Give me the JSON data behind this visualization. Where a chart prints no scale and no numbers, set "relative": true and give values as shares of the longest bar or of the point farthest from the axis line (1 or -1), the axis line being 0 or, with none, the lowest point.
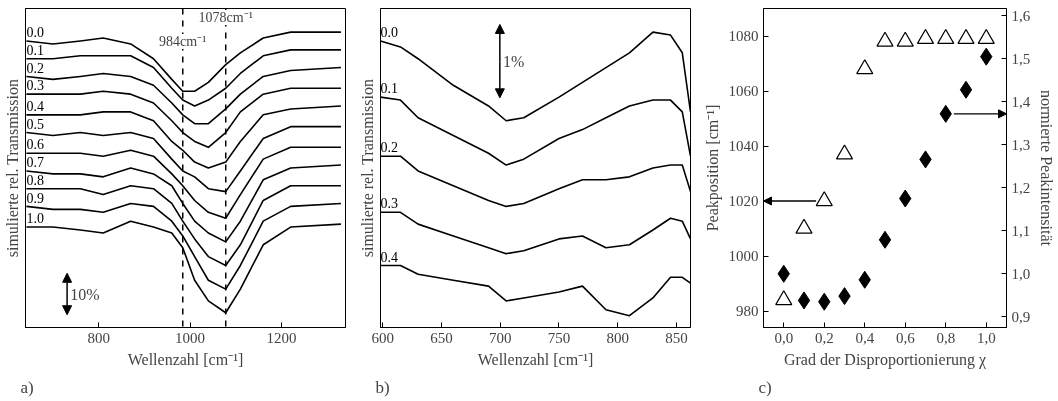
{
  "chart_data": [
    {
      "type": "line",
      "relative": true,
      "xlabel": "Wellenzahl [cm⁻¹]",
      "ylabel": "simulierte rel. Transmission",
      "xlim": [
        640,
        1340
      ],
      "xticks": [
        800,
        1000,
        1200
      ],
      "line_style": "solid",
      "x": [
        642,
        700,
        760,
        810,
        870,
        920,
        960,
        984,
        1010,
        1040,
        1078,
        1110,
        1160,
        1220,
        1330
      ],
      "series": [
        {
          "name": "0.0",
          "color": "#000000",
          "values": [
            0.97,
            0.96,
            0.97,
            0.98,
            0.96,
            0.91,
            0.84,
            0.8,
            0.8,
            0.83,
            0.89,
            0.93,
            0.98,
            1.0,
            1.0
          ]
        },
        {
          "name": "0.1",
          "color": "#000000",
          "values": [
            0.91,
            0.91,
            0.92,
            0.92,
            0.92,
            0.88,
            0.81,
            0.77,
            0.75,
            0.77,
            0.81,
            0.86,
            0.92,
            0.94,
            0.94
          ]
        },
        {
          "name": "0.2",
          "color": "#000000",
          "values": [
            0.85,
            0.84,
            0.85,
            0.86,
            0.85,
            0.82,
            0.76,
            0.72,
            0.69,
            0.69,
            0.74,
            0.79,
            0.85,
            0.87,
            0.88
          ]
        },
        {
          "name": "0.3",
          "color": "#000000",
          "values": [
            0.79,
            0.79,
            0.79,
            0.8,
            0.79,
            0.76,
            0.7,
            0.66,
            0.63,
            0.61,
            0.66,
            0.73,
            0.79,
            0.81,
            0.81
          ]
        },
        {
          "name": "0.4",
          "color": "#000000",
          "values": [
            0.72,
            0.72,
            0.72,
            0.73,
            0.73,
            0.7,
            0.63,
            0.6,
            0.56,
            0.54,
            0.56,
            0.63,
            0.72,
            0.74,
            0.75
          ]
        },
        {
          "name": "0.5",
          "color": "#000000",
          "values": [
            0.66,
            0.65,
            0.66,
            0.65,
            0.66,
            0.64,
            0.57,
            0.53,
            0.51,
            0.47,
            0.46,
            0.53,
            0.64,
            0.68,
            0.68
          ]
        },
        {
          "name": "0.6",
          "color": "#000000",
          "values": [
            0.59,
            0.59,
            0.59,
            0.58,
            0.6,
            0.58,
            0.52,
            0.48,
            0.43,
            0.39,
            0.37,
            0.45,
            0.57,
            0.61,
            0.61
          ]
        },
        {
          "name": "0.7",
          "color": "#000000",
          "values": [
            0.53,
            0.52,
            0.52,
            0.51,
            0.54,
            0.52,
            0.48,
            0.42,
            0.36,
            0.32,
            0.29,
            0.36,
            0.5,
            0.54,
            0.55
          ]
        },
        {
          "name": "0.8",
          "color": "#000000",
          "values": [
            0.47,
            0.47,
            0.47,
            0.45,
            0.48,
            0.47,
            0.42,
            0.36,
            0.3,
            0.24,
            0.21,
            0.28,
            0.43,
            0.48,
            0.48
          ]
        },
        {
          "name": "0.9",
          "color": "#000000",
          "values": [
            0.41,
            0.4,
            0.4,
            0.39,
            0.42,
            0.41,
            0.36,
            0.31,
            0.24,
            0.16,
            0.13,
            0.21,
            0.36,
            0.41,
            0.42
          ]
        },
        {
          "name": "1.0",
          "color": "#000000",
          "values": [
            0.34,
            0.34,
            0.33,
            0.32,
            0.36,
            0.34,
            0.32,
            0.27,
            0.16,
            0.09,
            0.05,
            0.13,
            0.28,
            0.34,
            0.35
          ]
        }
      ],
      "ref_lines": [
        {
          "axis": "x",
          "value": 984,
          "label": "984cm⁻¹",
          "line_style": "dashed",
          "color": "#000000"
        },
        {
          "axis": "x",
          "value": 1078,
          "label": "1078cm⁻¹",
          "line_style": "dashed",
          "color": "#000000"
        }
      ],
      "annotations": [
        "10%",
        "a)"
      ]
    },
    {
      "type": "line",
      "relative": true,
      "xlabel": "Wellenzahl [cm⁻¹]",
      "ylabel": "simulierte rel. Transmission",
      "xlim": [
        598,
        862
      ],
      "xticks": [
        600,
        650,
        700,
        750,
        800,
        850
      ],
      "line_style": "solid",
      "x": [
        598,
        615,
        630,
        660,
        690,
        705,
        720,
        750,
        770,
        790,
        810,
        830,
        845,
        855,
        862
      ],
      "series": [
        {
          "name": "0.0",
          "color": "#000000",
          "values": [
            0.97,
            0.95,
            0.91,
            0.82,
            0.75,
            0.7,
            0.71,
            0.78,
            0.83,
            0.88,
            0.93,
            1.0,
            0.99,
            0.93,
            0.73
          ]
        },
        {
          "name": "0.1",
          "color": "#000000",
          "values": [
            0.78,
            0.77,
            0.71,
            0.65,
            0.59,
            0.55,
            0.57,
            0.64,
            0.67,
            0.71,
            0.75,
            0.77,
            0.77,
            0.73,
            0.58
          ]
        },
        {
          "name": "0.2",
          "color": "#000000",
          "values": [
            0.58,
            0.58,
            0.53,
            0.48,
            0.43,
            0.41,
            0.42,
            0.47,
            0.5,
            0.5,
            0.51,
            0.54,
            0.55,
            0.55,
            0.46
          ]
        },
        {
          "name": "0.3",
          "color": "#000000",
          "values": [
            0.39,
            0.39,
            0.35,
            0.31,
            0.27,
            0.25,
            0.26,
            0.3,
            0.31,
            0.27,
            0.28,
            0.33,
            0.37,
            0.36,
            0.3
          ]
        },
        {
          "name": "0.4",
          "color": "#000000",
          "values": [
            0.21,
            0.21,
            0.18,
            0.16,
            0.14,
            0.09,
            0.1,
            0.12,
            0.14,
            0.06,
            0.04,
            0.1,
            0.17,
            0.17,
            0.15
          ]
        }
      ],
      "annotations": [
        "1%",
        "b)"
      ]
    },
    {
      "type": "scatter",
      "xlabel": "Grad der Disproportionierung χ",
      "ylabel": "Peakposition [cm⁻¹]",
      "y2label": "normierte Peakintensität",
      "xlim": [
        -0.1,
        1.1
      ],
      "xticks": [
        {
          "value": 0,
          "label": "0,0"
        },
        {
          "value": 0.2,
          "label": "0,2"
        },
        {
          "value": 0.4,
          "label": "0,4"
        },
        {
          "value": 0.6,
          "label": "0,6"
        },
        {
          "value": 0.8,
          "label": "0,8"
        },
        {
          "value": 1.0,
          "label": "1,0"
        }
      ],
      "ylim": [
        974,
        1090
      ],
      "yticks": [
        980,
        1000,
        1020,
        1040,
        1060,
        1080
      ],
      "y2lim": [
        0.875,
        1.617
      ],
      "y2ticks": [
        {
          "value": 0.9,
          "label": "0,9"
        },
        {
          "value": 1.0,
          "label": "1,0"
        },
        {
          "value": 1.1,
          "label": "1,1"
        },
        {
          "value": 1.2,
          "label": "1,2"
        },
        {
          "value": 1.3,
          "label": "1,3"
        },
        {
          "value": 1.4,
          "label": "1,4"
        },
        {
          "value": 1.5,
          "label": "1,5"
        },
        {
          "value": 1.6,
          "label": "1,6"
        }
      ],
      "x": [
        0,
        0.1,
        0.2,
        0.3,
        0.4,
        0.5,
        0.6,
        0.7,
        0.8,
        0.9,
        1.0
      ],
      "series": [
        {
          "color": "#000000",
          "marker": "triangle",
          "values": [
            984,
            1010,
            1020,
            1037,
            1068,
            1078,
            1078,
            1079,
            1079,
            1079,
            1079
          ]
        },
        {
          "color": "#000000",
          "marker": "diamond",
          "axis": "y2",
          "values": [
            1.0,
            0.938,
            0.935,
            0.948,
            0.986,
            1.079,
            1.175,
            1.266,
            1.372,
            1.428,
            1.505
          ]
        }
      ],
      "annotations": [
        "c)"
      ]
    }
  ]
}
